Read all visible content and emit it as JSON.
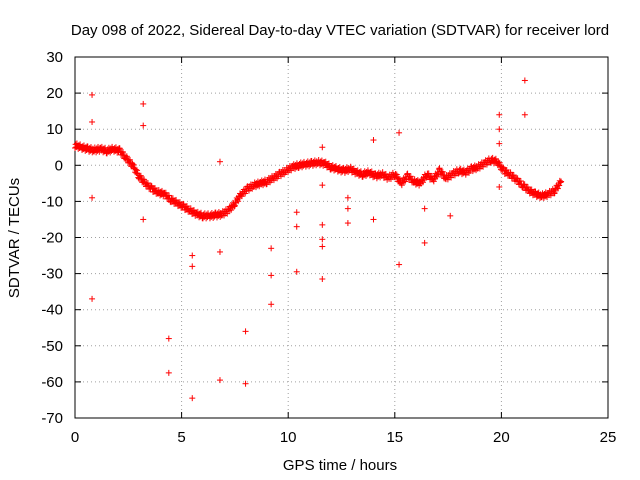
{
  "chart_data": {
    "type": "scatter",
    "title": "Day 098 of 2022, Sidereal Day-to-day VTEC variation (SDTVAR) for receiver lord",
    "xlabel": "GPS time / hours",
    "ylabel": "SDTVAR / TECUs",
    "xlim": [
      0,
      25
    ],
    "ylim": [
      -70,
      30
    ],
    "xticks": [
      0,
      5,
      10,
      15,
      20,
      25
    ],
    "yticks": [
      -70,
      -60,
      -50,
      -40,
      -30,
      -20,
      -10,
      0,
      10,
      20,
      30
    ],
    "grid": true,
    "marker": "+",
    "color": "#ff0000",
    "series": [
      {
        "name": "SDTVAR",
        "trend": [
          [
            0.0,
            5.5
          ],
          [
            0.3,
            5.0
          ],
          [
            0.6,
            4.5
          ],
          [
            0.9,
            4.2
          ],
          [
            1.2,
            4.5
          ],
          [
            1.5,
            4.0
          ],
          [
            1.8,
            4.5
          ],
          [
            2.1,
            4.0
          ],
          [
            2.4,
            2.0
          ],
          [
            2.7,
            0.0
          ],
          [
            3.0,
            -3.0
          ],
          [
            3.3,
            -5.0
          ],
          [
            3.6,
            -6.5
          ],
          [
            3.9,
            -7.5
          ],
          [
            4.2,
            -8.0
          ],
          [
            4.5,
            -9.5
          ],
          [
            4.8,
            -10.5
          ],
          [
            5.1,
            -11.5
          ],
          [
            5.4,
            -12.5
          ],
          [
            5.7,
            -13.5
          ],
          [
            6.0,
            -14.0
          ],
          [
            6.3,
            -14.0
          ],
          [
            6.6,
            -13.8
          ],
          [
            6.9,
            -13.5
          ],
          [
            7.2,
            -12.5
          ],
          [
            7.5,
            -10.5
          ],
          [
            7.8,
            -8.0
          ],
          [
            8.1,
            -6.5
          ],
          [
            8.4,
            -5.5
          ],
          [
            8.7,
            -5.0
          ],
          [
            9.0,
            -4.5
          ],
          [
            9.3,
            -3.5
          ],
          [
            9.6,
            -2.5
          ],
          [
            9.9,
            -1.5
          ],
          [
            10.2,
            -0.5
          ],
          [
            10.5,
            0.0
          ],
          [
            10.8,
            0.3
          ],
          [
            11.1,
            0.5
          ],
          [
            11.4,
            0.8
          ],
          [
            11.7,
            0.5
          ],
          [
            12.0,
            -0.5
          ],
          [
            12.3,
            -1.0
          ],
          [
            12.6,
            -1.5
          ],
          [
            12.9,
            -1.0
          ],
          [
            13.2,
            -2.0
          ],
          [
            13.5,
            -2.5
          ],
          [
            13.8,
            -2.0
          ],
          [
            14.1,
            -3.0
          ],
          [
            14.4,
            -2.5
          ],
          [
            14.7,
            -3.5
          ],
          [
            15.0,
            -2.5
          ],
          [
            15.3,
            -5.0
          ],
          [
            15.6,
            -3.0
          ],
          [
            15.9,
            -4.5
          ],
          [
            16.2,
            -5.0
          ],
          [
            16.5,
            -2.5
          ],
          [
            16.8,
            -4.0
          ],
          [
            17.1,
            -1.5
          ],
          [
            17.4,
            -3.5
          ],
          [
            17.7,
            -2.5
          ],
          [
            18.0,
            -1.5
          ],
          [
            18.3,
            -2.0
          ],
          [
            18.6,
            -1.0
          ],
          [
            18.9,
            -0.5
          ],
          [
            19.2,
            0.5
          ],
          [
            19.5,
            1.5
          ],
          [
            19.8,
            1.0
          ],
          [
            20.1,
            -1.5
          ],
          [
            20.4,
            -2.5
          ],
          [
            20.7,
            -4.0
          ],
          [
            21.0,
            -5.5
          ],
          [
            21.3,
            -7.0
          ],
          [
            21.6,
            -8.0
          ],
          [
            21.9,
            -8.5
          ],
          [
            22.2,
            -8.0
          ],
          [
            22.5,
            -7.0
          ],
          [
            22.8,
            -4.5
          ]
        ],
        "outliers": [
          [
            0.8,
            19.5
          ],
          [
            0.8,
            12.0
          ],
          [
            0.8,
            -9.0
          ],
          [
            0.8,
            -37.0
          ],
          [
            3.2,
            17.0
          ],
          [
            3.2,
            11.0
          ],
          [
            3.2,
            -15.0
          ],
          [
            4.4,
            -48.0
          ],
          [
            4.4,
            -57.5
          ],
          [
            5.5,
            -25.0
          ],
          [
            5.5,
            -28.0
          ],
          [
            5.5,
            -64.5
          ],
          [
            6.8,
            1.0
          ],
          [
            6.8,
            -24.0
          ],
          [
            6.8,
            -59.5
          ],
          [
            8.0,
            -46.0
          ],
          [
            8.0,
            -60.5
          ],
          [
            9.2,
            -23.0
          ],
          [
            9.2,
            -30.5
          ],
          [
            9.2,
            -38.5
          ],
          [
            10.4,
            -13.0
          ],
          [
            10.4,
            -17.0
          ],
          [
            10.4,
            -29.5
          ],
          [
            11.6,
            5.0
          ],
          [
            11.6,
            -5.5
          ],
          [
            11.6,
            -16.5
          ],
          [
            11.6,
            -20.5
          ],
          [
            11.6,
            -22.5
          ],
          [
            11.6,
            -31.5
          ],
          [
            12.8,
            -9.0
          ],
          [
            12.8,
            -12.0
          ],
          [
            12.8,
            -16.0
          ],
          [
            14.0,
            7.0
          ],
          [
            14.0,
            -15.0
          ],
          [
            15.2,
            9.0
          ],
          [
            15.2,
            -27.5
          ],
          [
            16.4,
            -12.0
          ],
          [
            16.4,
            -21.5
          ],
          [
            17.6,
            -14.0
          ],
          [
            19.9,
            14.0
          ],
          [
            19.9,
            10.0
          ],
          [
            19.9,
            6.0
          ],
          [
            19.9,
            -6.0
          ],
          [
            21.1,
            23.5
          ],
          [
            21.1,
            14.0
          ]
        ]
      }
    ]
  }
}
